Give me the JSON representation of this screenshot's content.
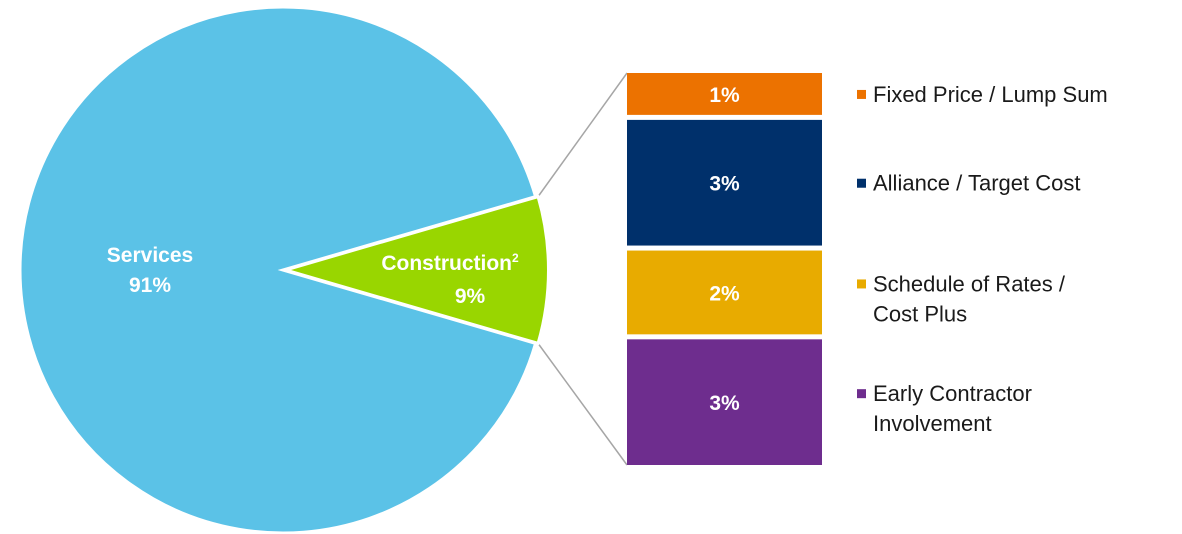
{
  "chart_data": {
    "type": "pie",
    "slices": [
      {
        "name": "Services",
        "value": 91,
        "label": "91%",
        "color": "#5bc2e7"
      },
      {
        "name": "Construction",
        "name_superscript": "2",
        "value": 9,
        "label": "9%",
        "color": "#99d600"
      }
    ],
    "breakdown": {
      "of_slice": "Construction",
      "type": "stacked-bar",
      "segments": [
        {
          "name": "Fixed Price / Lump Sum",
          "legend_lines": [
            "Fixed Price / Lump Sum"
          ],
          "value": 1,
          "label": "1%",
          "color": "#ec7200"
        },
        {
          "name": "Alliance / Target Cost",
          "legend_lines": [
            "Alliance / Target Cost"
          ],
          "value": 3,
          "label": "3%",
          "color": "#00306b"
        },
        {
          "name": "Schedule of Rates / Cost Plus",
          "legend_lines": [
            "Schedule of Rates /",
            "Cost Plus"
          ],
          "value": 2,
          "label": "2%",
          "color": "#e8ab00"
        },
        {
          "name": "Early Contractor Involvement",
          "legend_lines": [
            "Early Contractor",
            "Involvement"
          ],
          "value": 3,
          "label": "3%",
          "color": "#6e2d8e"
        }
      ]
    },
    "legend_position": "right",
    "connector_color": "#a6a6a6"
  }
}
